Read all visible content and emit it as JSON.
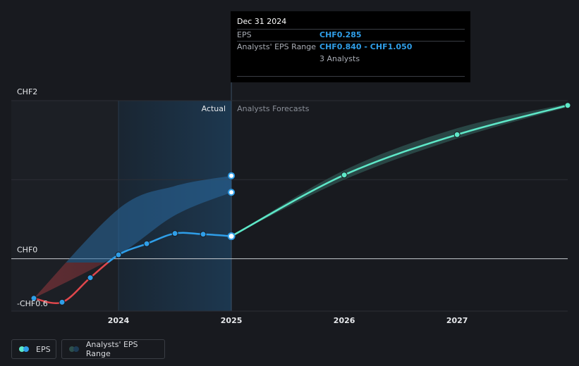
{
  "tooltip": {
    "date": "Dec 31 2024",
    "eps_label": "EPS",
    "eps_value": "CHF0.285",
    "range_label": "Analysts' EPS Range",
    "range_value": "CHF0.840 - CHF1.050",
    "analysts": "3 Analysts"
  },
  "legend": {
    "eps_label": "EPS",
    "range_label": "Analysts' EPS Range"
  },
  "colors": {
    "background": "#181a1f",
    "eps_line": "#2f9ee8",
    "eps_negative": "#e0474c",
    "forecast_line": "#5ee8c8",
    "forecast_band": "#2d4f4c",
    "actual_region": "#1d3b55"
  },
  "chart_data": {
    "type": "line",
    "y_tick_labels": [
      "CHF2",
      "CHF0",
      "-CHF0.6"
    ],
    "x_tick_labels": [
      "2024",
      "2025",
      "2026",
      "2027"
    ],
    "ylim": [
      -0.6,
      2.0
    ],
    "xlim": [
      2023.0,
      2027.98
    ],
    "region_labels": {
      "actual": "Actual",
      "forecast": "Analysts Forecasts"
    },
    "grid": true,
    "legend_position": "bottom-left",
    "series": [
      {
        "name": "EPS",
        "points": [
          {
            "x": 2023.25,
            "y": -0.5
          },
          {
            "x": 2023.5,
            "y": -0.55
          },
          {
            "x": 2023.75,
            "y": -0.24
          },
          {
            "x": 2024.0,
            "y": 0.05
          },
          {
            "x": 2024.25,
            "y": 0.19
          },
          {
            "x": 2024.5,
            "y": 0.32
          },
          {
            "x": 2024.75,
            "y": 0.31
          },
          {
            "x": 2025.0,
            "y": 0.285
          }
        ]
      },
      {
        "name": "Analysts' EPS Range",
        "actual_band": [
          {
            "x": 2023.25,
            "low": -0.5,
            "high": -0.5
          },
          {
            "x": 2024.0,
            "low": 0.05,
            "high": 0.63
          },
          {
            "x": 2024.5,
            "low": 0.55,
            "high": 0.92
          },
          {
            "x": 2025.0,
            "low": 0.84,
            "high": 1.05
          }
        ],
        "actual_band_points": [
          {
            "x": 2025.0,
            "y": 1.05
          },
          {
            "x": 2025.0,
            "y": 0.84
          }
        ]
      },
      {
        "name": "EPS forecast",
        "points": [
          {
            "x": 2025.0,
            "y": 0.285
          },
          {
            "x": 2026.0,
            "y": 1.06
          },
          {
            "x": 2027.0,
            "y": 1.57
          },
          {
            "x": 2027.98,
            "y": 1.94
          }
        ],
        "band": [
          {
            "x": 2025.0,
            "low": 0.285,
            "high": 0.285
          },
          {
            "x": 2026.0,
            "low": 1.0,
            "high": 1.12
          },
          {
            "x": 2027.0,
            "low": 1.52,
            "high": 1.65
          },
          {
            "x": 2027.98,
            "low": 1.92,
            "high": 1.96
          }
        ]
      }
    ]
  }
}
